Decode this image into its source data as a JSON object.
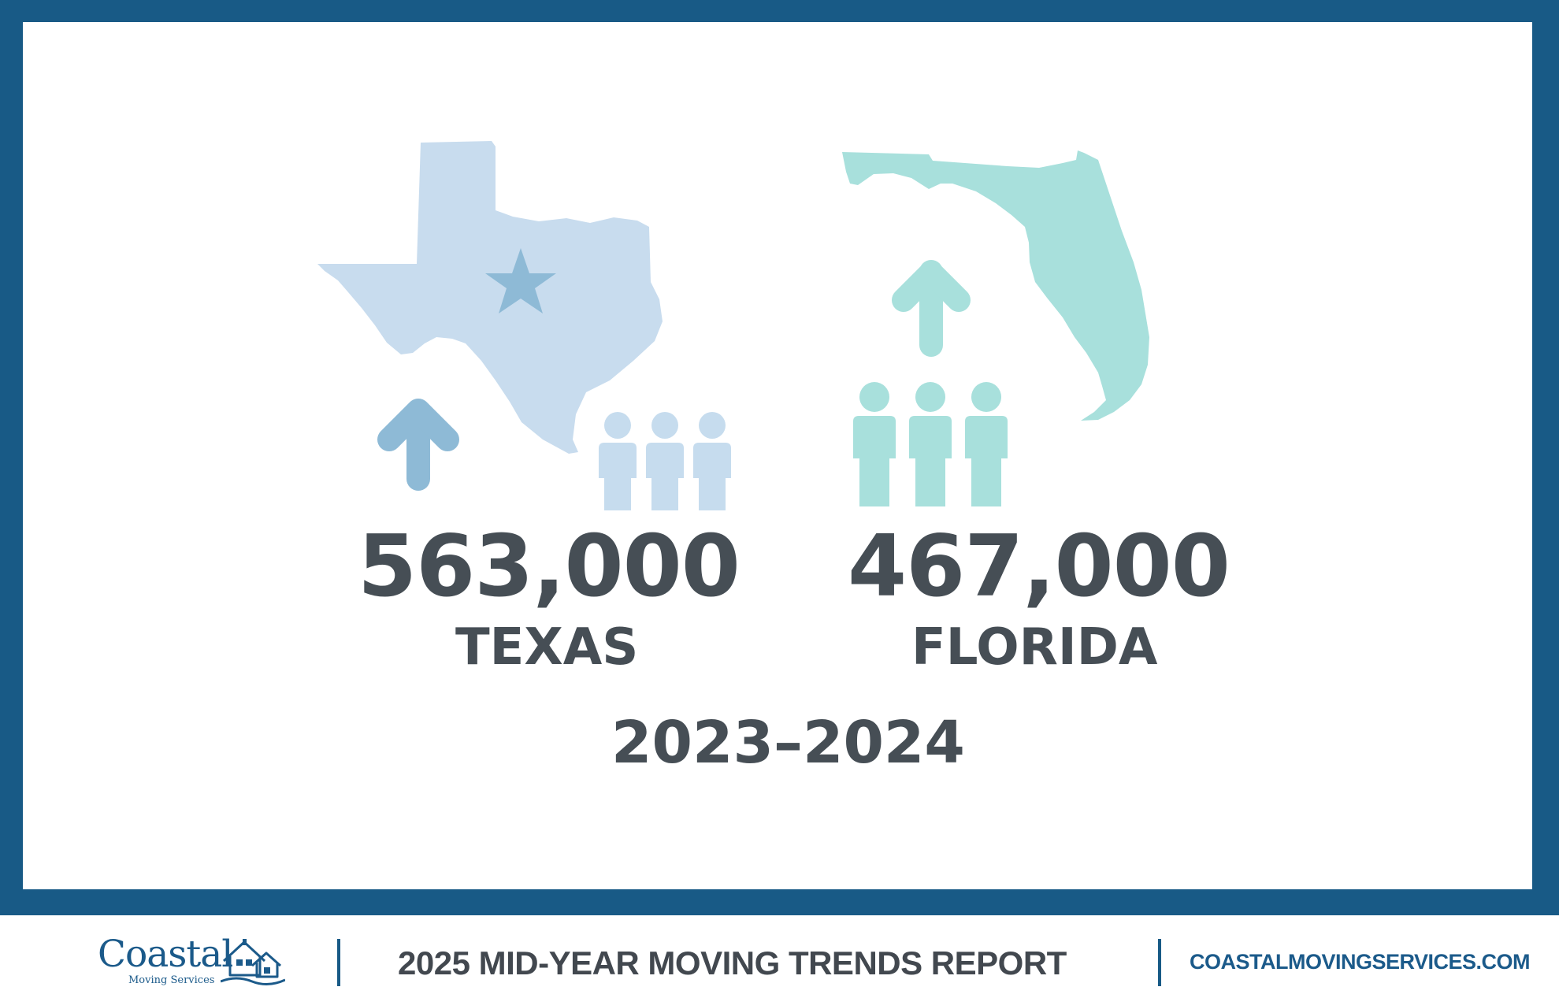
{
  "colors": {
    "frame": "#185a86",
    "texas_map": "#c8dcee",
    "texas_accent": "#8ebad6",
    "texas_people": "#c6dcee",
    "florida": "#a8e0dc",
    "text": "#464e55",
    "brand": "#1b5a8a"
  },
  "icons": [
    "texas-map-icon",
    "star-icon",
    "arrow-up-icon",
    "people-icon",
    "florida-map-icon"
  ],
  "stats": [
    {
      "value": "563,000",
      "state": "TEXAS"
    },
    {
      "value": "467,000",
      "state": "FLORIDA"
    }
  ],
  "period": "2023–2024",
  "footer": {
    "logo_word": "Coastal",
    "logo_sub": "Moving Services",
    "report_title": "2025 MID-YEAR MOVING TRENDS REPORT",
    "website": "COASTALMOVINGSERVICES.COM"
  }
}
